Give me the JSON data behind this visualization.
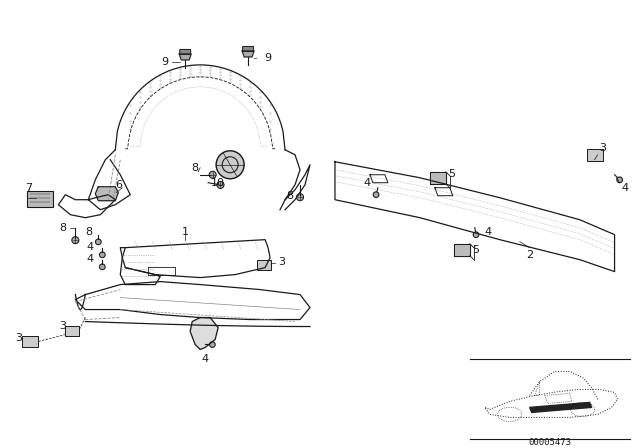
{
  "background_color": "#ffffff",
  "diagram_code": "00005473",
  "figsize": [
    6.4,
    4.48
  ],
  "dpi": 100,
  "dark": "#1a1a1a",
  "gray": "#888888",
  "light_gray": "#cccccc",
  "dot_gray": "#999999"
}
